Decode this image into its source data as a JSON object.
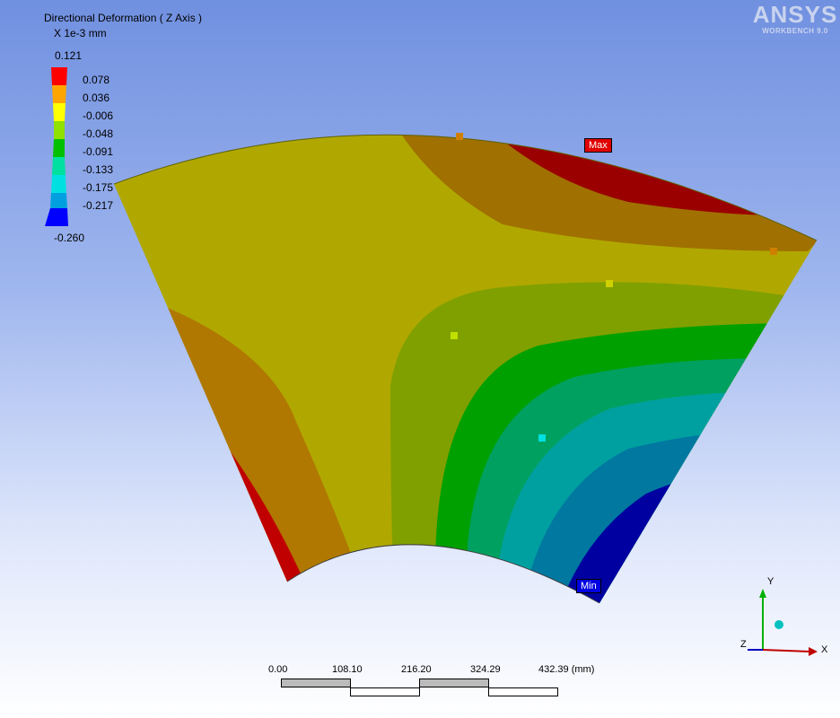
{
  "legend": {
    "title": "Directional Deformation ( Z Axis )",
    "units": "X 1e-3 mm",
    "entries": [
      {
        "value": "0.121",
        "color": "#ff0000"
      },
      {
        "value": "0.078",
        "color": "#ffa500"
      },
      {
        "value": "0.036",
        "color": "#ffff00"
      },
      {
        "value": "-0.006",
        "color": "#90e000"
      },
      {
        "value": "-0.048",
        "color": "#00c000"
      },
      {
        "value": "-0.091",
        "color": "#00e0a0"
      },
      {
        "value": "-0.133",
        "color": "#00e0e0"
      },
      {
        "value": "-0.175",
        "color": "#00a0e0"
      },
      {
        "value": "-0.217",
        "color": "#0000ff"
      },
      {
        "value": "-0.260"
      }
    ]
  },
  "brand": {
    "name": "ANSYS",
    "sub": "WORKBENCH 9.0"
  },
  "probes": {
    "max_label": "Max",
    "min_label": "Min"
  },
  "scale_bar": {
    "ticks": [
      "0.00",
      "108.10",
      "216.20",
      "324.29",
      "432.39 (mm)"
    ]
  },
  "triad": {
    "x": "X",
    "y": "Y",
    "z": "Z"
  },
  "colors": {
    "max_tag": "#e00000",
    "min_tag": "#0000e0"
  }
}
